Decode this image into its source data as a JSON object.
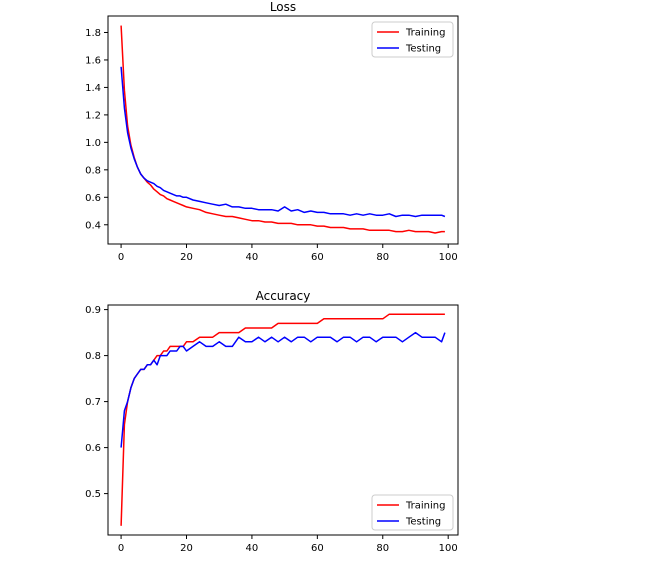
{
  "chart_data": [
    {
      "type": "line",
      "title": "Loss",
      "xlabel": "",
      "ylabel": "",
      "xlim": [
        -4,
        103
      ],
      "ylim": [
        0.26,
        1.92
      ],
      "xticks": [
        0,
        20,
        40,
        60,
        80,
        100
      ],
      "yticks": [
        0.4,
        0.6,
        0.8,
        1.0,
        1.2,
        1.4,
        1.6,
        1.8
      ],
      "ytick_labels": [
        "0.4",
        "0.6",
        "0.8",
        "1.0",
        "1.2",
        "1.4",
        "1.6",
        "1.8"
      ],
      "grid": false,
      "legend": "upper-right",
      "series": [
        {
          "name": "Training",
          "color": "#ff0000",
          "x": [
            0,
            1,
            2,
            3,
            4,
            5,
            6,
            7,
            8,
            9,
            10,
            11,
            12,
            13,
            14,
            15,
            16,
            17,
            18,
            19,
            20,
            22,
            24,
            26,
            28,
            30,
            32,
            34,
            36,
            38,
            40,
            42,
            44,
            46,
            48,
            50,
            52,
            54,
            56,
            58,
            60,
            62,
            64,
            66,
            68,
            70,
            72,
            74,
            76,
            78,
            80,
            82,
            84,
            86,
            88,
            90,
            92,
            94,
            96,
            98,
            99
          ],
          "values": [
            1.85,
            1.38,
            1.12,
            0.98,
            0.89,
            0.82,
            0.77,
            0.74,
            0.71,
            0.69,
            0.66,
            0.64,
            0.62,
            0.61,
            0.59,
            0.58,
            0.57,
            0.56,
            0.55,
            0.54,
            0.53,
            0.52,
            0.51,
            0.49,
            0.48,
            0.47,
            0.46,
            0.46,
            0.45,
            0.44,
            0.43,
            0.43,
            0.42,
            0.42,
            0.41,
            0.41,
            0.41,
            0.4,
            0.4,
            0.4,
            0.39,
            0.39,
            0.38,
            0.38,
            0.38,
            0.37,
            0.37,
            0.37,
            0.36,
            0.36,
            0.36,
            0.36,
            0.35,
            0.35,
            0.36,
            0.35,
            0.35,
            0.35,
            0.34,
            0.35,
            0.35
          ]
        },
        {
          "name": "Testing",
          "color": "#0000ff",
          "x": [
            0,
            1,
            2,
            3,
            4,
            5,
            6,
            7,
            8,
            9,
            10,
            11,
            12,
            13,
            14,
            15,
            16,
            17,
            18,
            19,
            20,
            22,
            24,
            26,
            28,
            30,
            32,
            34,
            36,
            38,
            40,
            42,
            44,
            46,
            48,
            50,
            52,
            54,
            56,
            58,
            60,
            62,
            64,
            66,
            68,
            70,
            72,
            74,
            76,
            78,
            80,
            82,
            84,
            86,
            88,
            90,
            92,
            94,
            96,
            98,
            99
          ],
          "values": [
            1.55,
            1.25,
            1.07,
            0.96,
            0.88,
            0.82,
            0.77,
            0.74,
            0.72,
            0.71,
            0.7,
            0.68,
            0.67,
            0.65,
            0.64,
            0.63,
            0.62,
            0.61,
            0.61,
            0.6,
            0.6,
            0.58,
            0.57,
            0.56,
            0.55,
            0.54,
            0.55,
            0.53,
            0.53,
            0.52,
            0.52,
            0.51,
            0.51,
            0.51,
            0.5,
            0.53,
            0.5,
            0.51,
            0.49,
            0.5,
            0.49,
            0.49,
            0.48,
            0.48,
            0.48,
            0.47,
            0.48,
            0.47,
            0.48,
            0.47,
            0.47,
            0.48,
            0.46,
            0.47,
            0.47,
            0.46,
            0.47,
            0.47,
            0.47,
            0.47,
            0.46
          ]
        }
      ]
    },
    {
      "type": "line",
      "title": "Accuracy",
      "xlabel": "",
      "ylabel": "",
      "xlim": [
        -4,
        103
      ],
      "ylim": [
        0.41,
        0.91
      ],
      "xticks": [
        0,
        20,
        40,
        60,
        80,
        100
      ],
      "yticks": [
        0.5,
        0.6,
        0.7,
        0.8,
        0.9
      ],
      "ytick_labels": [
        "0.5",
        "0.6",
        "0.7",
        "0.8",
        "0.9"
      ],
      "grid": false,
      "legend": "lower-right",
      "series": [
        {
          "name": "Training",
          "color": "#ff0000",
          "x": [
            0,
            1,
            2,
            3,
            4,
            5,
            6,
            7,
            8,
            9,
            10,
            11,
            12,
            13,
            14,
            15,
            16,
            17,
            18,
            19,
            20,
            22,
            24,
            26,
            28,
            30,
            32,
            34,
            36,
            38,
            40,
            42,
            44,
            46,
            48,
            50,
            52,
            54,
            56,
            58,
            60,
            62,
            64,
            66,
            68,
            70,
            72,
            74,
            76,
            78,
            80,
            82,
            84,
            86,
            88,
            90,
            92,
            94,
            96,
            98,
            99
          ],
          "values": [
            0.43,
            0.65,
            0.7,
            0.73,
            0.75,
            0.76,
            0.77,
            0.77,
            0.78,
            0.78,
            0.79,
            0.8,
            0.8,
            0.81,
            0.81,
            0.82,
            0.82,
            0.82,
            0.82,
            0.82,
            0.83,
            0.83,
            0.84,
            0.84,
            0.84,
            0.85,
            0.85,
            0.85,
            0.85,
            0.86,
            0.86,
            0.86,
            0.86,
            0.86,
            0.87,
            0.87,
            0.87,
            0.87,
            0.87,
            0.87,
            0.87,
            0.88,
            0.88,
            0.88,
            0.88,
            0.88,
            0.88,
            0.88,
            0.88,
            0.88,
            0.88,
            0.89,
            0.89,
            0.89,
            0.89,
            0.89,
            0.89,
            0.89,
            0.89,
            0.89,
            0.89
          ]
        },
        {
          "name": "Testing",
          "color": "#0000ff",
          "x": [
            0,
            1,
            2,
            3,
            4,
            5,
            6,
            7,
            8,
            9,
            10,
            11,
            12,
            13,
            14,
            15,
            16,
            17,
            18,
            19,
            20,
            22,
            24,
            26,
            28,
            30,
            32,
            34,
            36,
            38,
            40,
            42,
            44,
            46,
            48,
            50,
            52,
            54,
            56,
            58,
            60,
            62,
            64,
            66,
            68,
            70,
            72,
            74,
            76,
            78,
            80,
            82,
            84,
            86,
            88,
            90,
            92,
            94,
            96,
            98,
            99
          ],
          "values": [
            0.6,
            0.68,
            0.7,
            0.73,
            0.75,
            0.76,
            0.77,
            0.77,
            0.78,
            0.78,
            0.79,
            0.78,
            0.8,
            0.8,
            0.8,
            0.81,
            0.81,
            0.81,
            0.82,
            0.82,
            0.81,
            0.82,
            0.83,
            0.82,
            0.82,
            0.83,
            0.82,
            0.82,
            0.84,
            0.83,
            0.83,
            0.84,
            0.83,
            0.84,
            0.83,
            0.84,
            0.83,
            0.84,
            0.84,
            0.83,
            0.84,
            0.84,
            0.84,
            0.83,
            0.84,
            0.84,
            0.83,
            0.84,
            0.84,
            0.83,
            0.84,
            0.84,
            0.84,
            0.83,
            0.84,
            0.85,
            0.84,
            0.84,
            0.84,
            0.83,
            0.85
          ]
        }
      ]
    }
  ]
}
